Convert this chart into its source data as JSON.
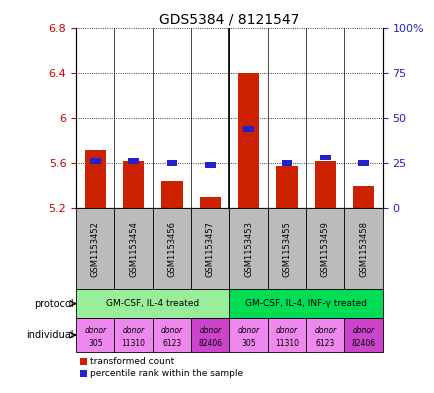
{
  "title": "GDS5384 / 8121547",
  "samples": [
    "GSM1153452",
    "GSM1153454",
    "GSM1153456",
    "GSM1153457",
    "GSM1153453",
    "GSM1153455",
    "GSM1153459",
    "GSM1153458"
  ],
  "transformed_count": [
    5.72,
    5.62,
    5.44,
    5.3,
    6.4,
    5.57,
    5.62,
    5.4
  ],
  "percentile_rank": [
    26,
    26,
    25,
    24,
    44,
    25,
    28,
    25
  ],
  "ylim_left": [
    5.2,
    6.8
  ],
  "ylim_right": [
    0,
    100
  ],
  "yticks_left": [
    5.2,
    5.6,
    6.0,
    6.4,
    6.8
  ],
  "yticks_right": [
    0,
    25,
    50,
    75,
    100
  ],
  "ytick_labels_left": [
    "5.2",
    "5.6",
    "6",
    "6.4",
    "6.8"
  ],
  "ytick_labels_right": [
    "0",
    "25",
    "50",
    "75",
    "100%"
  ],
  "protocol_groups": [
    {
      "label": "GM-CSF, IL-4 treated",
      "start": 0,
      "end": 3,
      "color": "#99EE99"
    },
    {
      "label": "GM-CSF, IL-4, INF-γ treated",
      "start": 4,
      "end": 7,
      "color": "#00DD55"
    }
  ],
  "indiv_colors": [
    "#EE88EE",
    "#EE88EE",
    "#EE88EE",
    "#CC44CC",
    "#EE88EE",
    "#EE88EE",
    "#EE88EE",
    "#CC44CC"
  ],
  "indiv_top": [
    "donor",
    "donor",
    "donor",
    "donor",
    "donor",
    "donor",
    "donor",
    "donor"
  ],
  "indiv_bot": [
    "305",
    "11310",
    "6123",
    "82406",
    "305",
    "11310",
    "6123",
    "82406"
  ],
  "bar_color": "#CC2200",
  "square_color": "#2222CC",
  "bar_bottom": 5.2,
  "left_label_color": "#CC0000",
  "right_label_color": "#2222CC",
  "sample_box_color": "#BBBBBB"
}
